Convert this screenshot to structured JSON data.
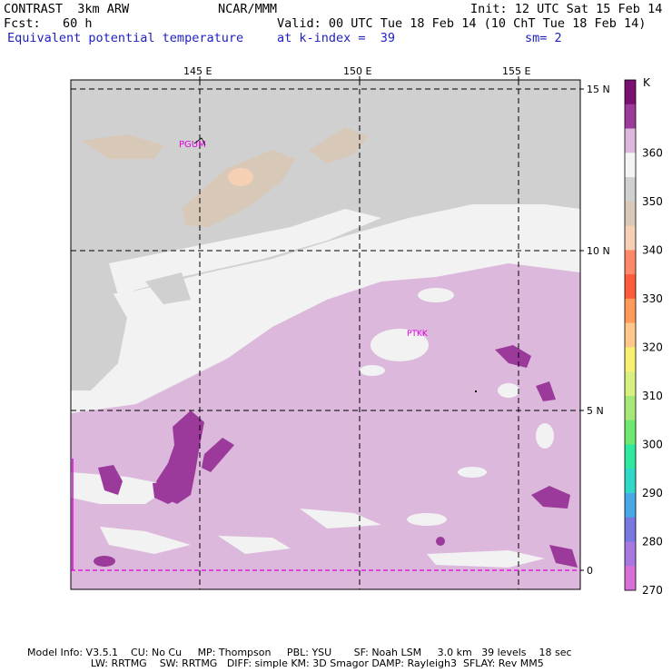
{
  "header": {
    "model": "CONTRAST  3km ARW",
    "org": "NCAR/MMM",
    "init": "Init: 12 UTC Sat 15 Feb 14",
    "fcst": "Fcst:   60 h",
    "valid": "Valid: 00 UTC Tue 18 Feb 14 (10 ChT Tue 18 Feb 14)",
    "field": "Equivalent potential temperature",
    "level": "at k-index =  39",
    "smooth": "sm= 2"
  },
  "map": {
    "lon_labels": [
      "145 E",
      "150 E",
      "155 E"
    ],
    "lat_labels": [
      "15 N",
      "10 N",
      "5 N",
      "0"
    ],
    "stations": [
      "PGUM",
      "PTKK"
    ]
  },
  "colorbar": {
    "unit": "K",
    "tick_labels": [
      "360",
      "350",
      "340",
      "330",
      "320",
      "310",
      "300",
      "290",
      "280",
      "270"
    ],
    "colors": [
      "#7a1070",
      "#9b3a9b",
      "#dcb8dc",
      "#f4f4f4",
      "#d0d0d0",
      "#d8c8b8",
      "#f6d0b4",
      "#ff8868",
      "#ff5a3c",
      "#ff9a5a",
      "#ffc88a",
      "#f8f070",
      "#d8f080",
      "#a8e878",
      "#70e870",
      "#30e8a0",
      "#30d8c8",
      "#4aa8e8",
      "#7878e0",
      "#a878e0",
      "#d870d8"
    ]
  },
  "footer": {
    "line1": "Model Info: V3.5.1    CU: No Cu     MP: Thompson     PBL: YSU       SF: Noah LSM     3.0 km   39 levels    18 sec",
    "line2": "                    LW: RRTMG    SW: RRTMG   DIFF: simple KM: 3D Smagor DAMP: Rayleigh3  SFLAY: Rev MM5"
  }
}
